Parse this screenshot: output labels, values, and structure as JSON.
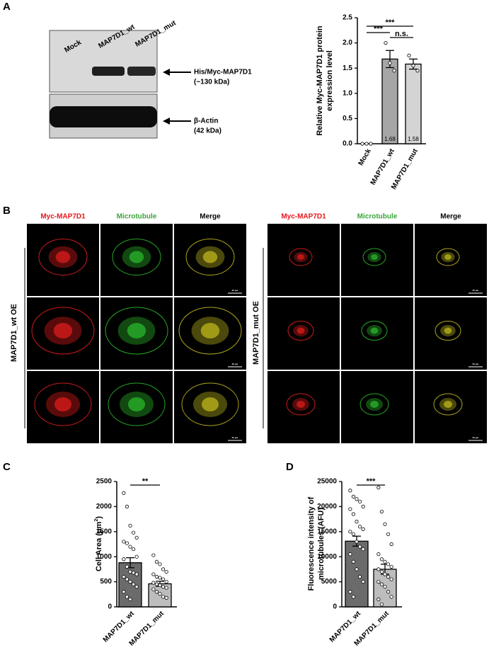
{
  "panel_labels": [
    "A",
    "B",
    "C",
    "D"
  ],
  "blot": {
    "lanes": [
      "Mock",
      "MAP7D1_wt",
      "MAP7D1_mut"
    ],
    "bands": [
      {
        "name": "His/Myc-MAP7D1",
        "size": "(~130 kDa)"
      },
      {
        "name": "β-Actin",
        "size": "(42 kDa)"
      }
    ]
  },
  "microscopy": {
    "columns": [
      "Myc-MAP7D1",
      "Microtubule",
      "Merge"
    ],
    "column_colors": [
      "#e8141c",
      "#3ca53c",
      "#000000"
    ],
    "groups": [
      "MAP7D1_wt OE",
      "MAP7D1_mut OE"
    ],
    "scale_bar": "20 μm"
  },
  "chart_data": [
    {
      "type": "bar",
      "ylabel": [
        "Relative Myc-MAP7D1 protein",
        "expression level"
      ],
      "categories": [
        "Mock",
        "MAP7D1_wt",
        "MAP7D1_mut"
      ],
      "values": [
        0,
        1.68,
        1.58
      ],
      "value_labels": [
        null,
        "1.68",
        "1.58"
      ],
      "errors": [
        0,
        0.17,
        0.1
      ],
      "colors": [
        "#ffffff",
        "#a6a6a6",
        "#d4d4d4"
      ],
      "points": [
        [
          0,
          0,
          0
        ],
        [
          2.0,
          1.6,
          1.45
        ],
        [
          1.75,
          1.55,
          1.45
        ]
      ],
      "ylim": [
        0,
        2.5
      ],
      "yticks": [
        {
          "value": 0,
          "label": "0.0"
        },
        0.5,
        {
          "value": 1,
          "label": "1.0"
        },
        1.5,
        {
          "value": 2,
          "label": "2.0"
        },
        2.5
      ],
      "significance": [
        {
          "text": "***",
          "between": [
            0,
            2
          ]
        },
        {
          "text": "***",
          "between": [
            0,
            1
          ]
        },
        {
          "text": "n.s.",
          "between": [
            1,
            2
          ]
        }
      ]
    },
    {
      "type": "bar",
      "ylabel": {
        "text": "Cell Area (μm",
        "sup": "2",
        "end": ")"
      },
      "categories": [
        "MAP7D1_wt",
        "MAP7D1_mut"
      ],
      "values": [
        880,
        460
      ],
      "errors": [
        100,
        50
      ],
      "colors": [
        "#6b6b6b",
        "#bdbdbd"
      ],
      "points": [
        [
          2270,
          2000,
          1620,
          1480,
          1380,
          1300,
          1270,
          1200,
          1150,
          1000,
          950,
          800,
          700,
          680,
          650,
          600,
          550,
          500,
          450,
          400,
          300,
          200,
          150
        ],
        [
          1030,
          900,
          850,
          750,
          700,
          650,
          600,
          580,
          550,
          500,
          480,
          450,
          430,
          400,
          380,
          350,
          300,
          260,
          200,
          180
        ]
      ],
      "ylim": [
        0,
        2500
      ],
      "yticks": [
        0,
        500,
        1000,
        1500,
        2000,
        2500
      ],
      "significance": [
        {
          "text": "**",
          "between": [
            0,
            1
          ]
        }
      ]
    },
    {
      "type": "bar",
      "ylabel": [
        "Fluorescence intensity of",
        "microtubules (AFU)"
      ],
      "categories": [
        "MAP7D1_wt",
        "MAP7D1_mut"
      ],
      "values": [
        13100,
        7500
      ],
      "errors": [
        1000,
        1000
      ],
      "colors": [
        "#6b6b6b",
        "#bdbdbd"
      ],
      "points": [
        [
          23200,
          22000,
          21500,
          21000,
          20000,
          19500,
          18500,
          17000,
          16000,
          15500,
          15000,
          14500,
          13000,
          12000,
          11500,
          10500,
          9000,
          7500,
          6000,
          5000,
          3000,
          2000
        ],
        [
          23800,
          19000,
          16500,
          14500,
          12500,
          10500,
          9500,
          9000,
          8500,
          8000,
          7500,
          7000,
          6500,
          6000,
          5500,
          5000,
          4500,
          4000,
          3000,
          2000,
          1500,
          500
        ]
      ],
      "ylim": [
        0,
        25000
      ],
      "yticks": [
        0,
        5000,
        10000,
        15000,
        20000,
        25000
      ],
      "significance": [
        {
          "text": "***",
          "between": [
            0,
            1
          ]
        }
      ]
    }
  ]
}
